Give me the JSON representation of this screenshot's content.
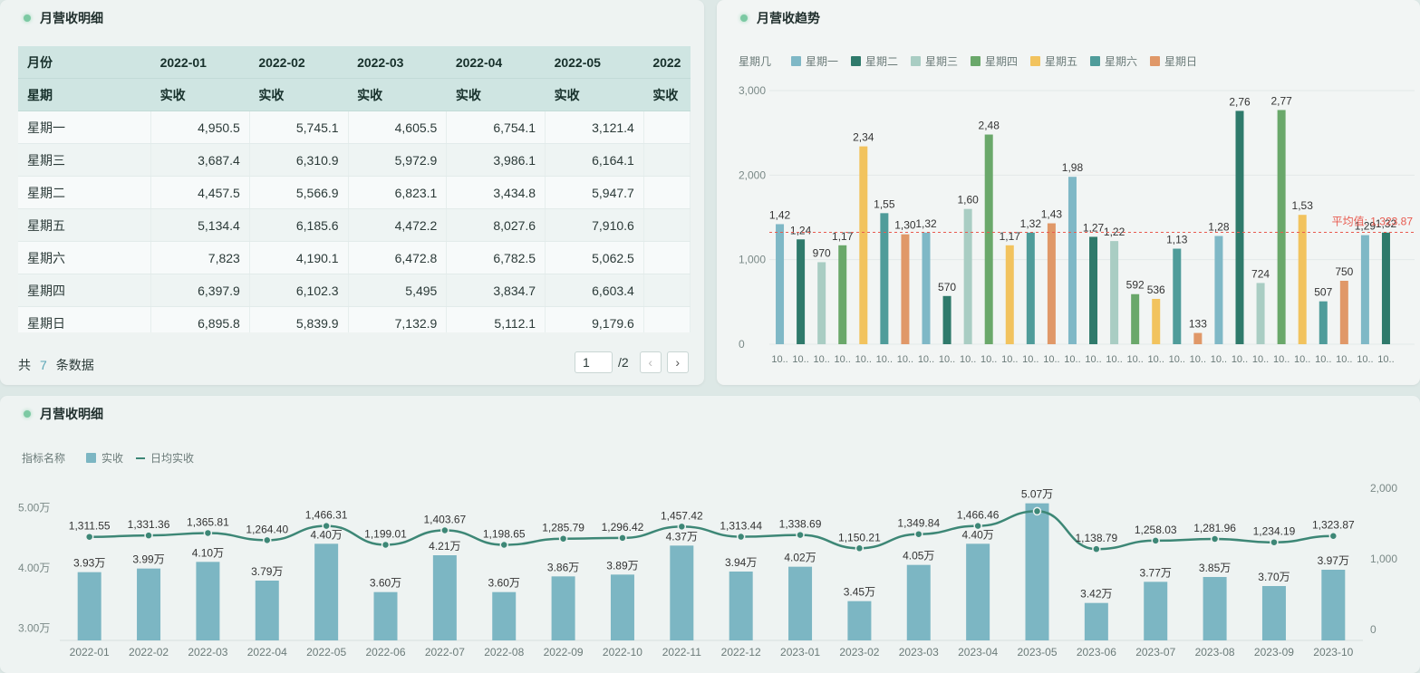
{
  "table_panel": {
    "title": "月营收明细",
    "columns": [
      "2022-01",
      "2022-02",
      "2022-03",
      "2022-04",
      "2022-05",
      "2022"
    ],
    "header_row1_label": "月份",
    "header_row2_label": "星期",
    "sub_header": "实收",
    "rows": [
      {
        "label": "星期一",
        "values": [
          "4,950.5",
          "5,745.1",
          "4,605.5",
          "6,754.1",
          "3,121.4",
          ""
        ]
      },
      {
        "label": "星期三",
        "values": [
          "3,687.4",
          "6,310.9",
          "5,972.9",
          "3,986.1",
          "6,164.1",
          ""
        ]
      },
      {
        "label": "星期二",
        "values": [
          "4,457.5",
          "5,566.9",
          "6,823.1",
          "3,434.8",
          "5,947.7",
          ""
        ]
      },
      {
        "label": "星期五",
        "values": [
          "5,134.4",
          "6,185.6",
          "4,472.2",
          "8,027.6",
          "7,910.6",
          ""
        ]
      },
      {
        "label": "星期六",
        "values": [
          "7,823",
          "4,190.1",
          "6,472.8",
          "6,782.5",
          "5,062.5",
          ""
        ]
      },
      {
        "label": "星期四",
        "values": [
          "6,397.9",
          "6,102.3",
          "5,495",
          "3,834.7",
          "6,603.4",
          ""
        ]
      },
      {
        "label": "星期日",
        "values": [
          "6,895.8",
          "5,839.9",
          "7,132.9",
          "5,112.1",
          "9,179.6",
          ""
        ]
      }
    ],
    "footer_prefix": "共",
    "footer_count": "7",
    "footer_suffix": "条数据",
    "pager_current": "1",
    "pager_total": "/2",
    "pager_prev": "‹",
    "pager_next": "›"
  },
  "trend_panel": {
    "title": "月营收趋势",
    "legend_title": "星期几",
    "avg_label": "平均值: 1,323.87",
    "colors": {
      "星期一": "#7fb8c6",
      "星期二": "#2f7a6b",
      "星期三": "#a9cdc3",
      "星期四": "#6aa86a",
      "星期五": "#f2c35e",
      "星期六": "#4f9c9a",
      "星期日": "#e09868"
    }
  },
  "combo_panel": {
    "title": "月营收明细",
    "legend_title": "指标名称",
    "legend_bar": "实收",
    "legend_line": "日均实收",
    "bar_color": "#7cb6c3",
    "line_color": "#3d8776"
  },
  "chart_data": [
    {
      "type": "bar",
      "title": "月营收趋势",
      "xlabel": "",
      "ylabel": "",
      "ylim": [
        0,
        3000
      ],
      "yticks": [
        "0",
        "1,000",
        "2,000",
        "3,000"
      ],
      "grid": true,
      "legend_position": "top-left",
      "bars": [
        {
          "series": "星期一",
          "value": 1420,
          "label": "1,42",
          "x": "10.."
        },
        {
          "series": "星期二",
          "value": 1240,
          "label": "1,24",
          "x": "10.."
        },
        {
          "series": "星期三",
          "value": 970,
          "label": "970",
          "x": "10.."
        },
        {
          "series": "星期四",
          "value": 1170,
          "label": "1,17",
          "x": "10.."
        },
        {
          "series": "星期五",
          "value": 2340,
          "label": "2,34",
          "x": "10.."
        },
        {
          "series": "星期六",
          "value": 1550,
          "label": "1,55",
          "x": "10.."
        },
        {
          "series": "星期日",
          "value": 1300,
          "label": "1,30",
          "x": "10.."
        },
        {
          "series": "星期一",
          "value": 1320,
          "label": "1,32",
          "x": "10.."
        },
        {
          "series": "星期二",
          "value": 570,
          "label": "570",
          "x": "10.."
        },
        {
          "series": "星期三",
          "value": 1600,
          "label": "1,60",
          "x": "10.."
        },
        {
          "series": "星期四",
          "value": 2480,
          "label": "2,48",
          "x": "10.."
        },
        {
          "series": "星期五",
          "value": 1170,
          "label": "1,17",
          "x": "10.."
        },
        {
          "series": "星期六",
          "value": 1320,
          "label": "1,32",
          "x": "10.."
        },
        {
          "series": "星期日",
          "value": 1430,
          "label": "1,43",
          "x": "10.."
        },
        {
          "series": "星期一",
          "value": 1980,
          "label": "1,98",
          "x": "10.."
        },
        {
          "series": "星期二",
          "value": 1270,
          "label": "1,27",
          "x": "10.."
        },
        {
          "series": "星期三",
          "value": 1220,
          "label": "1,22",
          "x": "10.."
        },
        {
          "series": "星期四",
          "value": 592,
          "label": "592",
          "x": "10.."
        },
        {
          "series": "星期五",
          "value": 536,
          "label": "536",
          "x": "10.."
        },
        {
          "series": "星期六",
          "value": 1130,
          "label": "1,13",
          "x": "10.."
        },
        {
          "series": "星期日",
          "value": 133,
          "label": "133",
          "x": "10.."
        },
        {
          "series": "星期一",
          "value": 1280,
          "label": "1,28",
          "x": "10.."
        },
        {
          "series": "星期二",
          "value": 2760,
          "label": "2,76",
          "x": "10.."
        },
        {
          "series": "星期三",
          "value": 724,
          "label": "724",
          "x": "10.."
        },
        {
          "series": "星期四",
          "value": 2770,
          "label": "2,77",
          "x": "10.."
        },
        {
          "series": "星期五",
          "value": 1530,
          "label": "1,53",
          "x": "10.."
        },
        {
          "series": "星期六",
          "value": 507,
          "label": "507",
          "x": "10.."
        },
        {
          "series": "星期日",
          "value": 750,
          "label": "750",
          "x": "10.."
        },
        {
          "series": "星期一",
          "value": 1290,
          "label": "1,29",
          "x": "10.."
        },
        {
          "series": "星期二",
          "value": 1320,
          "label": "1,32",
          "x": "10.."
        }
      ],
      "average": 1323.87
    },
    {
      "type": "bar",
      "title": "月营收明细",
      "categories": [
        "2022-01",
        "2022-02",
        "2022-03",
        "2022-04",
        "2022-05",
        "2022-06",
        "2022-07",
        "2022-08",
        "2022-09",
        "2022-10",
        "2022-11",
        "2022-12",
        "2023-01",
        "2023-02",
        "2023-03",
        "2023-04",
        "2023-05",
        "2023-06",
        "2023-07",
        "2023-08",
        "2023-09",
        "2023-10"
      ],
      "series": [
        {
          "name": "实收",
          "type": "bar",
          "axis": "left",
          "values": [
            39300,
            39900,
            41000,
            37900,
            44000,
            36000,
            42100,
            36000,
            38600,
            38900,
            43700,
            39400,
            40200,
            34500,
            40500,
            44000,
            50700,
            34200,
            37700,
            38500,
            37000,
            39700
          ],
          "labels": [
            "3.93万",
            "3.99万",
            "4.10万",
            "3.79万",
            "4.40万",
            "3.60万",
            "4.21万",
            "3.60万",
            "3.86万",
            "3.89万",
            "4.37万",
            "3.94万",
            "4.02万",
            "3.45万",
            "4.05万",
            "4.40万",
            "5.07万",
            "3.42万",
            "3.77万",
            "3.85万",
            "3.70万",
            "3.97万"
          ]
        },
        {
          "name": "日均实收",
          "type": "line",
          "axis": "right",
          "values": [
            1311.55,
            1331.36,
            1365.81,
            1264.4,
            1466.31,
            1199.01,
            1403.67,
            1198.65,
            1285.79,
            1296.42,
            1457.42,
            1313.44,
            1338.69,
            1150.21,
            1349.84,
            1466.46,
            1674.07,
            1138.79,
            1258.03,
            1281.96,
            1234.19,
            1323.87
          ],
          "labels": [
            "1,311.55",
            "1,331.36",
            "1,365.81",
            "1,264.40",
            "1,466.31",
            "1,199.01",
            "1,403.67",
            "1,198.65",
            "1,285.79",
            "1,296.42",
            "1,457.42",
            "1,313.44",
            "1,338.69",
            "1,150.21",
            "1,349.84",
            "1,466.46",
            "",
            "1,138.79",
            "1,258.03",
            "1,281.96",
            "1,234.19",
            "1,323.87"
          ]
        }
      ],
      "ylim_left": [
        28000,
        52000
      ],
      "yticks_left": [
        {
          "v": 30000,
          "t": "3.00万"
        },
        {
          "v": 40000,
          "t": "4.00万"
        },
        {
          "v": 50000,
          "t": "5.00万"
        }
      ],
      "ylim_right": [
        0,
        2000
      ],
      "yticks_right": [
        {
          "v": 0,
          "t": "0"
        },
        {
          "v": 1000,
          "t": "1,000"
        },
        {
          "v": 2000,
          "t": "2,000"
        }
      ],
      "legend_position": "top-left"
    }
  ]
}
